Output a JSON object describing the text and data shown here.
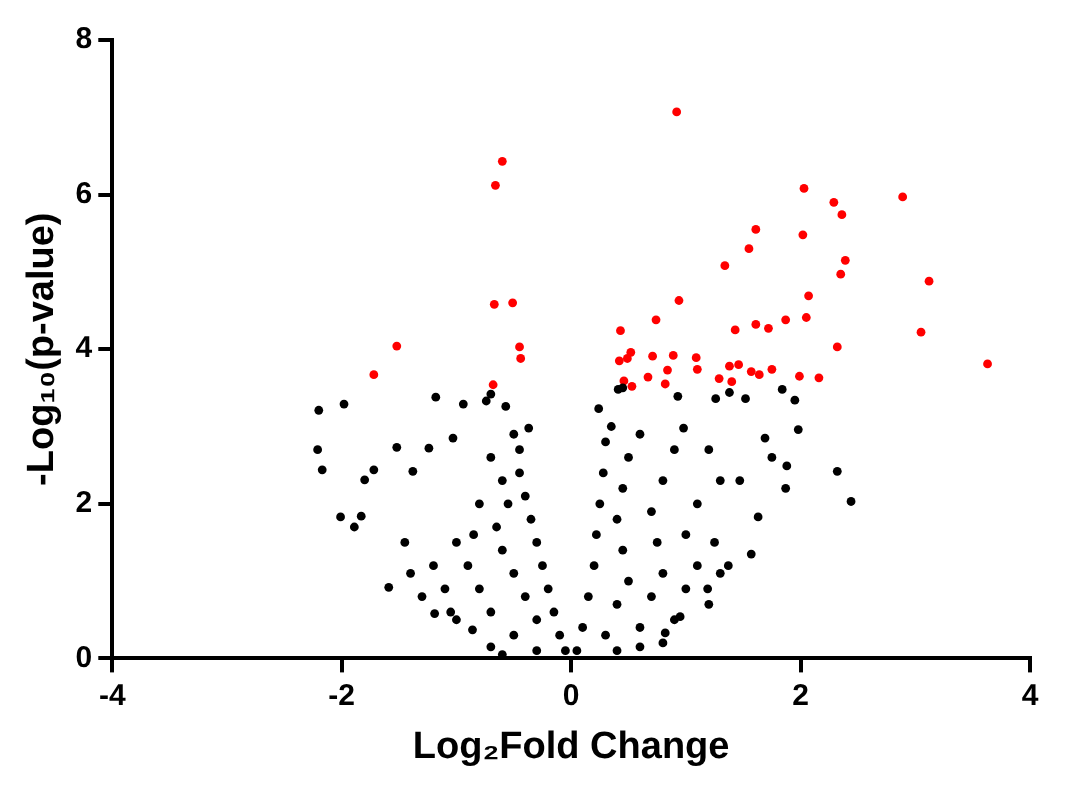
{
  "chart_data": {
    "type": "scatter",
    "xlabel": "Log₂Fold Change",
    "ylabel": "-Log₁₀(p-value)",
    "xlim": [
      -4,
      4
    ],
    "xticks": [
      -4,
      -2,
      0,
      2,
      4
    ],
    "ylim": [
      0,
      8
    ],
    "yticks": [
      0,
      2,
      4,
      6,
      8
    ],
    "grid": false,
    "legend": false,
    "marker": "circle",
    "series": [
      {
        "color": "#000000",
        "x": [
          -2.2,
          -1.98,
          -2.21,
          -2.17,
          -2.01,
          -1.89,
          -1.83,
          -1.59,
          -1.52,
          -1.72,
          -1.8,
          -1.24,
          -1.18,
          -0.94,
          -0.74,
          -0.7,
          -0.57,
          -0.37,
          -1.03,
          -1.38,
          -1.19,
          -1.05,
          -0.86,
          0.24,
          0.41,
          0.45,
          0.93,
          1.26,
          1.38,
          1.52,
          1.84,
          1.95,
          1.98,
          1.69,
          1.88,
          1.87,
          2.32,
          2.44,
          1.63,
          1.57,
          1.37,
          1.19,
          0.82,
          0.95,
          1.75,
          1.47,
          0.98,
          -0.05,
          -0.1,
          -0.15,
          -0.2,
          -0.25,
          -0.3,
          -0.35,
          -0.4,
          -0.45,
          -0.45,
          -0.5,
          -0.3,
          -0.4,
          -0.5,
          -0.6,
          -0.65,
          -0.55,
          -0.6,
          -0.7,
          -0.5,
          -0.7,
          -0.8,
          -0.9,
          -0.85,
          -0.8,
          -1.0,
          -1.1,
          -1.2,
          -1.0,
          -1.3,
          -1.4,
          -1.45,
          -0.7,
          -0.3,
          -0.6,
          0.05,
          0.1,
          0.15,
          0.2,
          0.22,
          0.25,
          0.28,
          0.3,
          0.35,
          0.3,
          0.4,
          0.5,
          0.45,
          0.4,
          0.45,
          0.5,
          0.6,
          0.6,
          0.7,
          0.8,
          0.75,
          0.7,
          0.8,
          0.9,
          0.9,
          1.0,
          1.1,
          1.0,
          1.1,
          1.2,
          1.3,
          1.25,
          1.3,
          1.2,
          0.8,
          0.4,
          0.6
        ],
        "values": [
          3.21,
          3.29,
          2.7,
          2.44,
          1.83,
          1.7,
          1.84,
          0.92,
          2.73,
          2.44,
          2.31,
          2.72,
          3.38,
          3.29,
          3.33,
          3.42,
          3.26,
          2.98,
          2.85,
          2.42,
          0.58,
          0.6,
          0.37,
          3.23,
          3.48,
          3.5,
          3.39,
          3.36,
          3.44,
          3.36,
          3.48,
          3.34,
          2.96,
          2.85,
          2.49,
          2.2,
          2.42,
          2.03,
          1.83,
          1.35,
          1.2,
          0.9,
          0.33,
          0.54,
          2.6,
          2.3,
          2.98,
          0.1,
          0.3,
          0.6,
          0.9,
          1.2,
          1.5,
          1.8,
          2.1,
          2.4,
          2.7,
          2.9,
          0.5,
          0.8,
          1.1,
          1.4,
          1.7,
          2.0,
          2.3,
          2.6,
          0.3,
          0.6,
          0.9,
          1.2,
          1.6,
          2.0,
          0.5,
          0.9,
          1.2,
          1.5,
          0.8,
          1.1,
          1.5,
          0.15,
          0.1,
          0.05,
          0.1,
          0.4,
          0.8,
          1.2,
          1.6,
          2.0,
          2.4,
          2.8,
          3.0,
          0.3,
          0.7,
          1.0,
          1.4,
          1.8,
          2.2,
          2.6,
          2.9,
          0.4,
          0.8,
          1.1,
          1.5,
          1.9,
          2.3,
          2.7,
          0.5,
          0.9,
          1.2,
          1.6,
          2.0,
          0.7,
          1.1,
          1.5,
          2.3,
          2.7,
          0.2,
          0.1,
          0.15
        ]
      },
      {
        "color": "#ff0000",
        "x": [
          -0.6,
          -0.66,
          -0.67,
          -0.51,
          -0.45,
          -0.44,
          -0.68,
          -1.52,
          -1.72,
          0.92,
          2.03,
          2.29,
          2.36,
          2.89,
          1.61,
          1.55,
          2.02,
          2.39,
          2.35,
          1.34,
          3.12,
          2.07,
          0.94,
          0.74,
          0.43,
          2.05,
          1.87,
          1.61,
          1.72,
          1.43,
          3.05,
          2.32,
          3.63,
          0.42,
          0.49,
          0.52,
          0.71,
          0.89,
          1.09,
          1.1,
          0.84,
          0.67,
          0.46,
          0.53,
          0.82,
          1.29,
          1.38,
          1.46,
          1.4,
          1.57,
          1.64,
          1.75,
          1.97,
          1.99,
          2.16
        ],
        "values": [
          6.43,
          6.12,
          4.58,
          4.6,
          4.03,
          3.88,
          3.54,
          4.04,
          3.67,
          7.07,
          6.08,
          5.9,
          5.74,
          5.97,
          5.55,
          5.3,
          5.48,
          5.15,
          4.97,
          5.08,
          4.88,
          4.69,
          4.63,
          4.38,
          4.24,
          4.41,
          4.38,
          4.32,
          4.27,
          4.25,
          4.22,
          4.03,
          3.81,
          3.85,
          3.88,
          3.96,
          3.91,
          3.92,
          3.89,
          3.74,
          3.73,
          3.64,
          3.59,
          3.52,
          3.55,
          3.62,
          3.78,
          3.8,
          3.58,
          3.71,
          3.67,
          3.74,
          null,
          3.65,
          3.63
        ]
      }
    ]
  }
}
